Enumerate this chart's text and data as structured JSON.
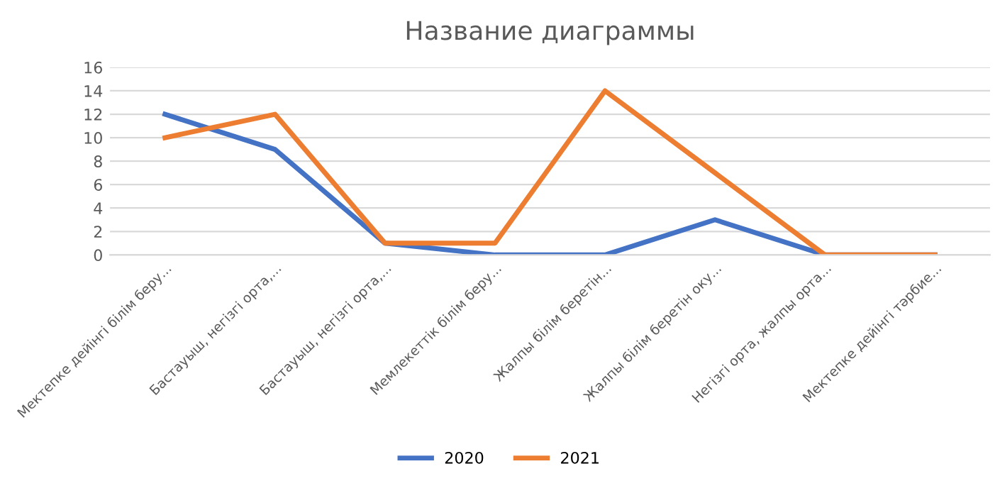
{
  "chart_data": {
    "type": "line",
    "title": "Название диаграммы",
    "categories": [
      "Мектепке дейінгі білім беру...",
      "Бастауыш, негізгі орта,...",
      "Бастауыш, негізгі орта,...",
      "Мемлекеттік білім беру...",
      "Жалпы білім беретін...",
      "Жалпы білім беретін оку...",
      "Негізгі орта, жалпы орта...",
      "Мектепке дейінгі тәрбие..."
    ],
    "series": [
      {
        "name": "2020",
        "color": "#4472c4",
        "values": [
          12,
          9,
          1,
          0,
          0,
          3,
          0,
          0
        ]
      },
      {
        "name": "2021",
        "color": "#ed7d31",
        "values": [
          10,
          12,
          1,
          1,
          14,
          7,
          0,
          0
        ]
      }
    ],
    "ylim": [
      0,
      16
    ],
    "yticks": [
      0,
      2,
      4,
      6,
      8,
      10,
      12,
      14,
      16
    ],
    "grid": "y",
    "legend": "bottom",
    "marker": "none",
    "line_style": "solid"
  }
}
